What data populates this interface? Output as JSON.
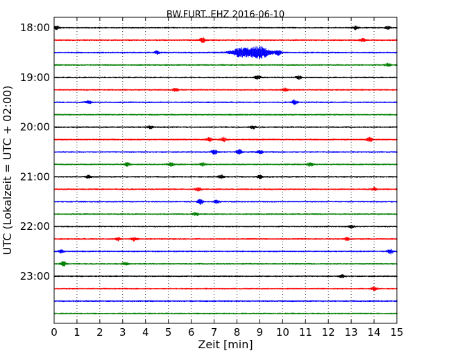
{
  "chart_data": {
    "type": "line",
    "title": "BW.FURT..EHZ 2016-06-10",
    "xlabel": "Zeit  [min]",
    "ylabel": "UTC (Lokalzeit = UTC + 02:00)",
    "xlim": [
      0,
      15
    ],
    "xticks": [
      "0",
      "1",
      "2",
      "3",
      "4",
      "5",
      "6",
      "7",
      "8",
      "9",
      "10",
      "11",
      "12",
      "13",
      "14",
      "15"
    ],
    "yticks": [
      "18:00",
      "19:00",
      "20:00",
      "21:00",
      "22:00",
      "23:00"
    ],
    "grid": "vertical-dotted",
    "trace_colors": [
      "#000000",
      "#ff0000",
      "#0000ff",
      "#008000"
    ],
    "trace_minutes": 15,
    "traces": [
      {
        "start": "18:00",
        "events": [
          [
            0.1,
            1.4
          ],
          [
            13.2,
            1.6
          ],
          [
            14.6,
            1.3
          ]
        ]
      },
      {
        "start": "18:15",
        "events": [
          [
            6.5,
            2.2
          ],
          [
            13.5,
            1.7
          ]
        ]
      },
      {
        "start": "18:30",
        "events": [
          [
            4.5,
            1.3
          ],
          [
            8.2,
            4.0
          ],
          [
            9.0,
            5.0
          ],
          [
            9.8,
            2.2
          ]
        ]
      },
      {
        "start": "18:45",
        "events": [
          [
            14.6,
            1.3
          ]
        ]
      },
      {
        "start": "19:00",
        "events": [
          [
            8.9,
            1.8
          ],
          [
            10.7,
            1.4
          ]
        ]
      },
      {
        "start": "19:15",
        "events": [
          [
            5.3,
            1.8
          ],
          [
            10.1,
            1.4
          ]
        ]
      },
      {
        "start": "19:30",
        "events": [
          [
            1.5,
            1.3
          ],
          [
            10.5,
            2.0
          ]
        ]
      },
      {
        "start": "19:45",
        "events": []
      },
      {
        "start": "20:00",
        "events": [
          [
            4.2,
            1.3
          ],
          [
            8.7,
            1.4
          ]
        ]
      },
      {
        "start": "20:15",
        "events": [
          [
            6.8,
            1.7
          ],
          [
            7.4,
            1.8
          ],
          [
            13.8,
            1.9
          ]
        ]
      },
      {
        "start": "20:30",
        "events": [
          [
            7.0,
            2.0
          ],
          [
            8.1,
            2.2
          ],
          [
            9.0,
            1.6
          ]
        ]
      },
      {
        "start": "20:45",
        "events": [
          [
            3.2,
            1.6
          ],
          [
            5.1,
            1.9
          ],
          [
            6.5,
            1.5
          ],
          [
            11.2,
            1.8
          ]
        ]
      },
      {
        "start": "21:00",
        "events": [
          [
            1.5,
            1.3
          ],
          [
            7.3,
            1.5
          ],
          [
            9.0,
            1.7
          ]
        ]
      },
      {
        "start": "21:15",
        "events": [
          [
            6.3,
            1.5
          ],
          [
            14.0,
            1.5
          ]
        ]
      },
      {
        "start": "21:30",
        "events": [
          [
            6.4,
            2.2
          ],
          [
            7.1,
            1.6
          ]
        ]
      },
      {
        "start": "21:45",
        "events": [
          [
            6.2,
            1.4
          ]
        ]
      },
      {
        "start": "22:00",
        "events": [
          [
            13.0,
            1.3
          ]
        ]
      },
      {
        "start": "22:15",
        "events": [
          [
            2.8,
            1.6
          ],
          [
            3.5,
            1.7
          ],
          [
            12.8,
            1.3
          ]
        ]
      },
      {
        "start": "22:30",
        "events": [
          [
            0.3,
            1.3
          ],
          [
            14.7,
            2.2
          ]
        ]
      },
      {
        "start": "22:45",
        "events": [
          [
            0.4,
            2.0
          ],
          [
            3.1,
            1.4
          ]
        ]
      },
      {
        "start": "23:00",
        "events": [
          [
            12.6,
            1.3
          ]
        ]
      },
      {
        "start": "23:15",
        "events": [
          [
            14.0,
            1.4
          ]
        ]
      },
      {
        "start": "23:30",
        "events": []
      },
      {
        "start": "23:45",
        "events": []
      }
    ]
  }
}
